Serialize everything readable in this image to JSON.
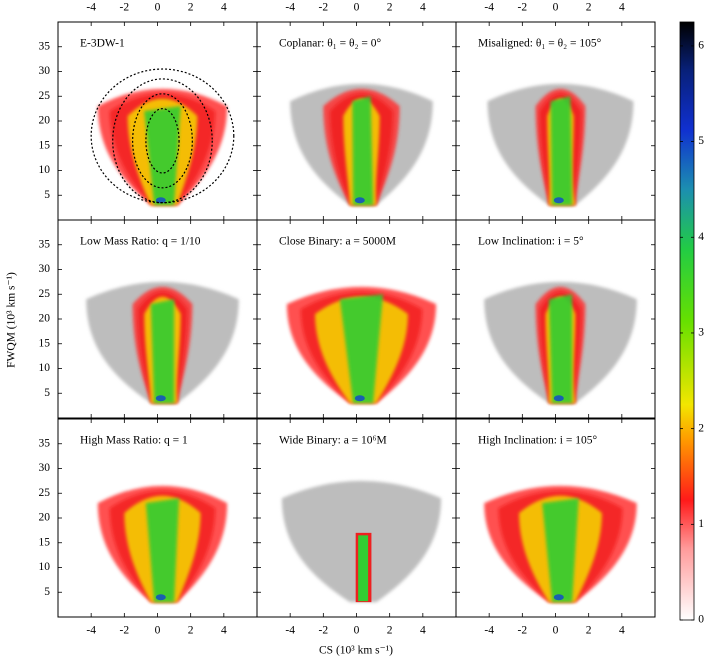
{
  "chart_data": {
    "type": "heatmap",
    "x_label": "CS (10³ km s⁻¹)",
    "y_label": "FWQM (10³ km s⁻¹)",
    "xlim": [
      -6,
      6
    ],
    "ylim": [
      0,
      40
    ],
    "xticks": [
      -4,
      -2,
      0,
      2,
      4
    ],
    "yticks": [
      5,
      10,
      15,
      20,
      25,
      30,
      35
    ],
    "colorbar": {
      "lim": [
        0,
        6.25
      ],
      "ticks": [
        0,
        1,
        2,
        3,
        4,
        5,
        6
      ]
    },
    "panels": [
      {
        "title": "E-3DW-1"
      },
      {
        "title": "Coplanar: θ₁ = θ₂ = 0°"
      },
      {
        "title": "Misaligned: θ₁ = θ₂ = 105°"
      },
      {
        "title": "Low Mass Ratio: q = 1/10"
      },
      {
        "title": "Close Binary: a = 5000M"
      },
      {
        "title": "Low Inclination: i = 5°"
      },
      {
        "title": "High Mass Ratio: q = 1"
      },
      {
        "title": "Wide Binary: a = 10⁶M"
      },
      {
        "title": "High Inclination: i = 105°"
      }
    ]
  }
}
